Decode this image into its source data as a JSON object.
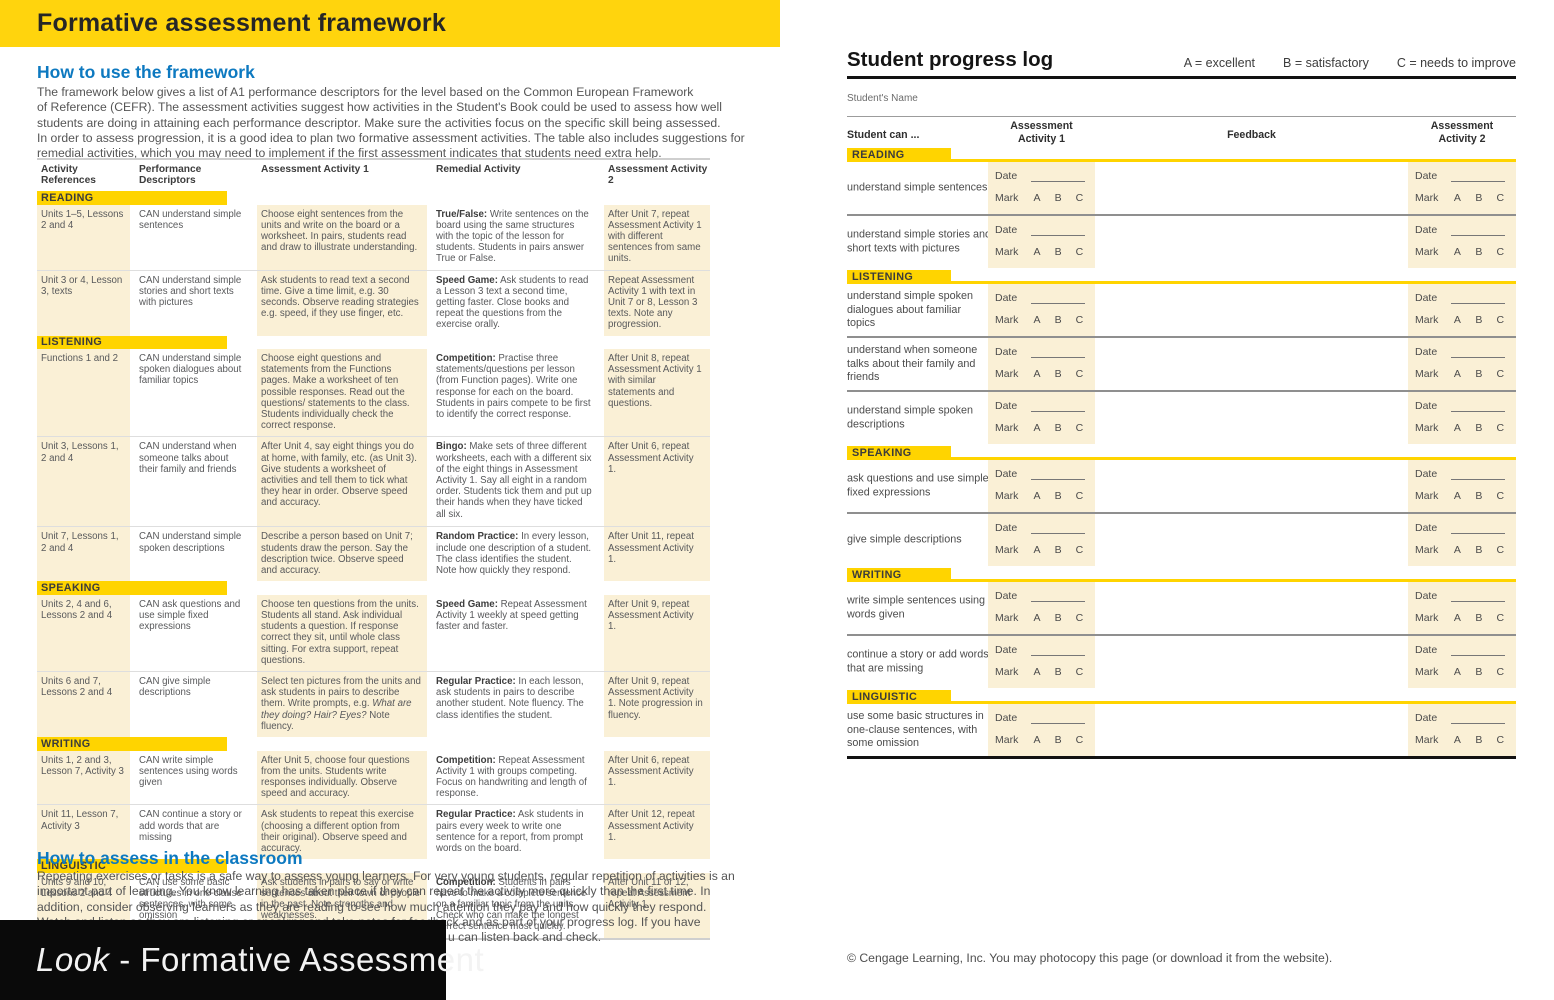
{
  "left_page": {
    "title": "Formative assessment framework",
    "how_to_use": {
      "heading": "How to use the framework",
      "lines": [
        "The framework below gives a list of A1 performance descriptors for the level based on the Common European Framework",
        "of Reference (CEFR). The assessment activities suggest how activities in the Student's Book could be used to assess how well",
        "students are doing in attaining each performance descriptor. Make sure the activities focus on the specific skill being assessed.",
        "In order to assess progression, it is a good idea to plan two formative assessment activities. The table also includes suggestions for",
        "remedial activities, which you may need to implement if the first assessment indicates that students need extra help."
      ]
    },
    "table": {
      "headers": [
        "Activity References",
        "Performance Descriptors",
        "Assessment Activity 1",
        "Remedial Activity",
        "Assessment Activity 2"
      ],
      "sections": [
        {
          "name": "READING",
          "rows": [
            {
              "ref": "Units 1–5, Lessons 2 and 4",
              "descriptor": "CAN understand simple sentences",
              "a1_pre": "Choose eight sentences from the units and write on the board or a worksheet. In pairs, students read and draw to illustrate understanding.",
              "a1_italic": "",
              "a1_post": "",
              "remedial_bold": "True/False:",
              "remedial_text": " Write sentences on the board using the same structures with the topic of the lesson for students. Students in pairs answer True or False.",
              "a2": "After Unit 7, repeat Assessment Activity 1 with different sentences from same units."
            },
            {
              "ref": "Unit 3 or 4, Lesson 3, texts",
              "descriptor": "CAN understand simple stories and short texts with pictures",
              "a1_pre": "Ask students to read text a second time. Give a time limit, e.g. 30 seconds. Observe reading strategies e.g. speed, if they use finger, etc.",
              "a1_italic": "",
              "a1_post": "",
              "remedial_bold": "Speed Game:",
              "remedial_text": " Ask students to read a Lesson 3 text a second time, getting faster. Close books and repeat the questions from the exercise orally.",
              "a2": "Repeat Assessment Activity 1 with text in Unit 7 or 8, Lesson 3 texts. Note any progression."
            }
          ]
        },
        {
          "name": "LISTENING",
          "rows": [
            {
              "ref": "Functions 1 and 2",
              "descriptor": "CAN understand simple spoken dialogues about familiar topics",
              "a1_pre": "Choose eight questions and statements from the Functions pages. Make a worksheet of ten possible responses. Read out the questions/ statements to the class. Students individually check the correct response.",
              "a1_italic": "",
              "a1_post": "",
              "remedial_bold": "Competition:",
              "remedial_text": " Practise three statements/questions per lesson (from Function pages). Write one response for each on the board. Students in pairs compete to be first to identify the correct response.",
              "a2": "After Unit 8, repeat Assessment Activity 1 with similar statements and questions."
            },
            {
              "ref": "Unit 3, Lessons 1, 2 and 4",
              "descriptor": "CAN understand when someone talks about their family and friends",
              "a1_pre": "After Unit 4, say eight things you do at home, with family, etc. (as Unit 3). Give students a worksheet of activities and tell them to tick what they hear in order. Observe speed and accuracy.",
              "a1_italic": "",
              "a1_post": "",
              "remedial_bold": "Bingo:",
              "remedial_text": " Make sets of three different worksheets, each with a different six of the eight things in Assessment Activity 1. Say all eight in a random order. Students tick them and put up their hands when they have ticked all six.",
              "a2": "After Unit 6, repeat Assessment Activity 1."
            },
            {
              "ref": "Unit 7, Lessons 1, 2 and 4",
              "descriptor": "CAN understand simple spoken descriptions",
              "a1_pre": "Describe a person based on Unit 7; students draw the person. Say the description twice. Observe speed and accuracy.",
              "a1_italic": "",
              "a1_post": "",
              "remedial_bold": "Random Practice:",
              "remedial_text": " In every lesson, include one description of a student. The class identifies the student. Note how quickly they respond.",
              "a2": "After Unit 11, repeat Assessment Activity 1."
            }
          ]
        },
        {
          "name": "SPEAKING",
          "rows": [
            {
              "ref": "Units 2, 4 and 6, Lessons 2 and 4",
              "descriptor": "CAN ask questions and use simple fixed expressions",
              "a1_pre": "Choose ten questions from the units. Students all stand. Ask individual students a question. If response correct they sit, until whole class sitting. For extra support, repeat questions.",
              "a1_italic": "",
              "a1_post": "",
              "remedial_bold": "Speed Game:",
              "remedial_text": " Repeat Assessment Activity 1 weekly at speed getting faster and faster.",
              "a2": "After Unit 9, repeat Assessment Activity 1."
            },
            {
              "ref": "Units 6 and 7, Lessons 2 and 4",
              "descriptor": "CAN give simple descriptions",
              "a1_pre": "Select ten pictures from the units and ask students in pairs to describe them. Write prompts, e.g. ",
              "a1_italic": "What are they doing? Hair? Eyes?",
              "a1_post": " Note fluency.",
              "remedial_bold": "Regular Practice:",
              "remedial_text": " In each lesson, ask students in pairs to describe another student. Note fluency. The class identifies the student.",
              "a2": "After Unit 9, repeat Assessment Activity 1. Note progression in fluency."
            }
          ]
        },
        {
          "name": "WRITING",
          "rows": [
            {
              "ref": "Units 1, 2 and 3, Lesson 7, Activity 3",
              "descriptor": "CAN write simple sentences using words given",
              "a1_pre": "After Unit 5, choose four questions from the units. Students write responses individually. Observe speed and accuracy.",
              "a1_italic": "",
              "a1_post": "",
              "remedial_bold": "Competition:",
              "remedial_text": " Repeat Assessment Activity 1 with groups competing. Focus on handwriting and length of response.",
              "a2": "After Unit 6, repeat Assessment Activity 1."
            },
            {
              "ref": "Unit 11, Lesson 7, Activity 3",
              "descriptor": "CAN continue a story or add words that are missing",
              "a1_pre": "Ask students to repeat this exercise (choosing a different option from their original). Observe speed and accuracy.",
              "a1_italic": "",
              "a1_post": "",
              "remedial_bold": "Regular Practice:",
              "remedial_text": " Ask students in pairs every week to write one sentence for a report, from prompt words on the board.",
              "a2": "After Unit 12, repeat Assessment Activity 1."
            }
          ]
        },
        {
          "name": "LINGUISTIC",
          "rows": [
            {
              "ref": "Units 9 and 10, Lessons 2 and 4",
              "descriptor": "CAN use some basic structures in one-clause sentences, with some omission",
              "a1_pre": "Ask students in pairs to say or write sentences about their town or people in the past. Note strengths and weaknesses.",
              "a1_italic": "",
              "a1_post": "",
              "remedial_bold": "Competition:",
              "remedial_text": " Students in pairs have to make a complete sentence on a familiar topic from the units. Check who can make the longest correct sentence most quickly.",
              "a2": "After Unit 11 or 12, repeat Assessment Activity 1."
            }
          ]
        }
      ]
    },
    "how_to_assess": {
      "heading": "How to assess in the classroom",
      "lines": [
        "Repeating exercises or tasks is a safe way to assess young learners. For very young students, regular repetition of activities is an",
        "important part of learning. You know learning has taken place if they can repeat the activity more quickly than the first time. In",
        "addition, consider observing learners as they are reading to see how much attention they pay and how quickly they respond.",
        "Watch and listen as they are listening or speaking and take notes for feedback and as part of your progress log. If you have",
        "u can listen back and check."
      ]
    },
    "banner": {
      "italic": "Look",
      "rest": " - Formative Assessment"
    }
  },
  "right_page": {
    "title": "Student progress log",
    "key": [
      "A = excellent",
      "B = satisfactory",
      "C = needs to improve"
    ],
    "student_name_label": "Student's Name",
    "columns": {
      "can": "Student can ...",
      "a1_line1": "Assessment",
      "a1_line2": "Activity 1",
      "feedback": "Feedback",
      "a2_line1": "Assessment",
      "a2_line2": "Activity 2"
    },
    "date_label": "Date",
    "mark_label": "Mark",
    "marks": [
      "A",
      "B",
      "C"
    ],
    "sections": [
      {
        "name": "READING",
        "rows": [
          "understand simple sentences",
          "understand simple stories and short texts with pictures"
        ]
      },
      {
        "name": "LISTENING",
        "rows": [
          "understand simple spoken dialogues about familiar topics",
          "understand when someone talks about their family and friends",
          "understand simple spoken descriptions"
        ]
      },
      {
        "name": "SPEAKING",
        "rows": [
          "ask questions and use simple fixed expressions",
          "give simple descriptions"
        ]
      },
      {
        "name": "WRITING",
        "rows": [
          "write simple sentences using words given",
          "continue a story or add words that are missing"
        ]
      },
      {
        "name": "LINGUISTIC",
        "rows": [
          "use some basic structures in one-clause sentences, with some omission"
        ]
      }
    ],
    "footer": "© Cengage Learning, Inc. You may photocopy this page (or download it from the website)."
  },
  "colors": {
    "band_yellow": "#ffd40d",
    "bar_yellow": "#ffd400",
    "cream": "#faf0d6",
    "heading_blue": "#0d79c0",
    "body_gray": "#58595b",
    "banner_black": "#0a0a0a"
  }
}
